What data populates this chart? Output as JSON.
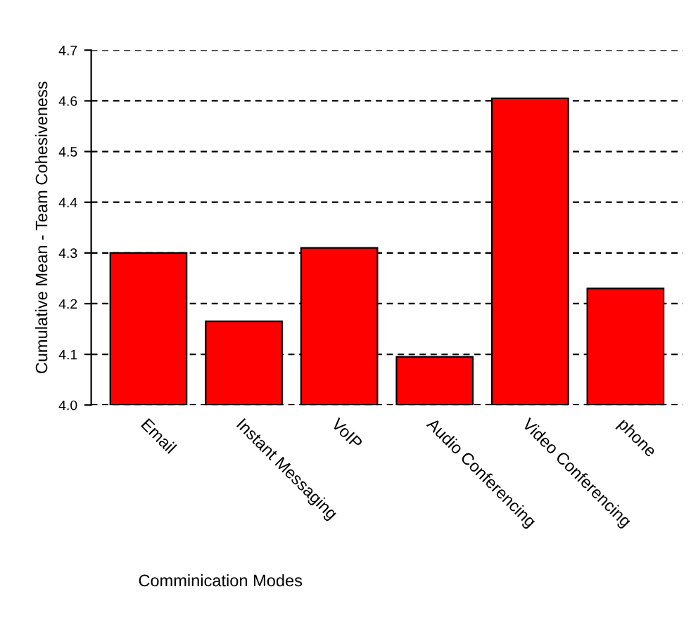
{
  "chart_data": {
    "type": "bar",
    "xlabel": "Comminication Modes",
    "ylabel": "Cumulative Mean - Team Cohesiveness",
    "categories": [
      "Email",
      "Instant Messaging",
      "VoIP",
      "Audio Conferencing",
      "Video Conferencing",
      "phone"
    ],
    "values": [
      4.3,
      4.165,
      4.31,
      4.095,
      4.605,
      4.23
    ],
    "color": "#ff0000",
    "ylim": [
      4.0,
      4.7
    ],
    "yticks": [
      {
        "value": 4.0,
        "label": "4.0"
      },
      {
        "value": 4.1,
        "label": "4.1"
      },
      {
        "value": 4.2,
        "label": "4.2"
      },
      {
        "value": 4.3,
        "label": "4.3"
      },
      {
        "value": 4.4,
        "label": "4.4"
      },
      {
        "value": 4.5,
        "label": "4.5"
      },
      {
        "value": 4.6,
        "label": "4.6"
      },
      {
        "value": 4.7,
        "label": "4.7"
      }
    ],
    "grid": "y"
  }
}
